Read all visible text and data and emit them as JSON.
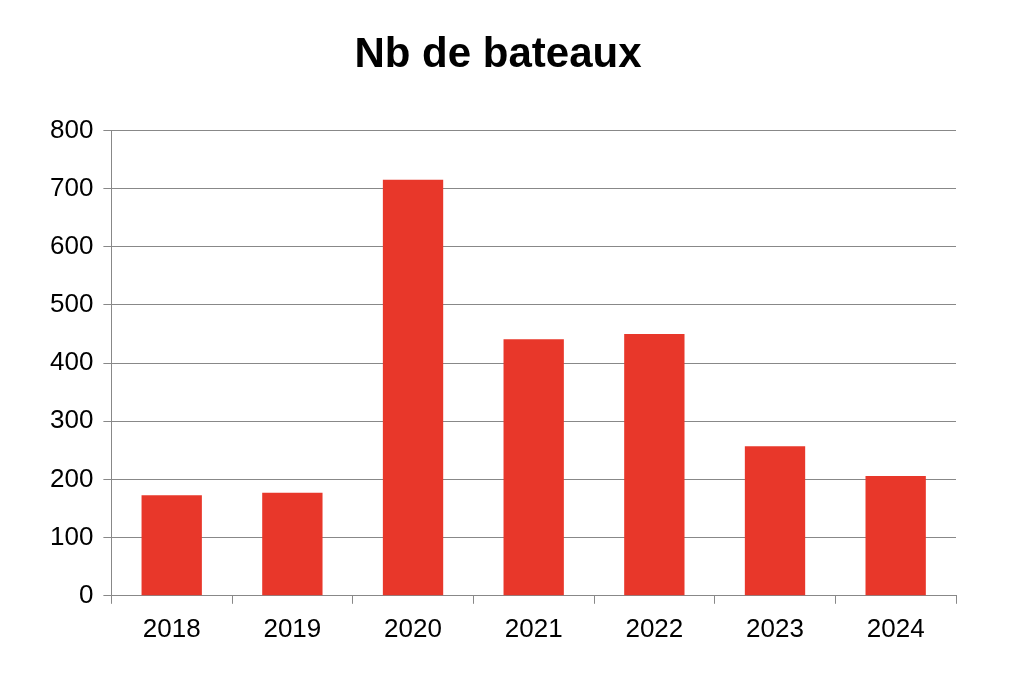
{
  "chart_data": {
    "type": "bar",
    "title": "Nb de bateaux",
    "categories": [
      "2018",
      "2019",
      "2020",
      "2021",
      "2022",
      "2023",
      "2024"
    ],
    "values": [
      173,
      177,
      715,
      441,
      450,
      257,
      206
    ],
    "color": "#e8372a",
    "ylim": [
      0,
      800
    ],
    "yticks": [
      0,
      100,
      200,
      300,
      400,
      500,
      600,
      700,
      800
    ],
    "grid": "y",
    "legend": false
  }
}
